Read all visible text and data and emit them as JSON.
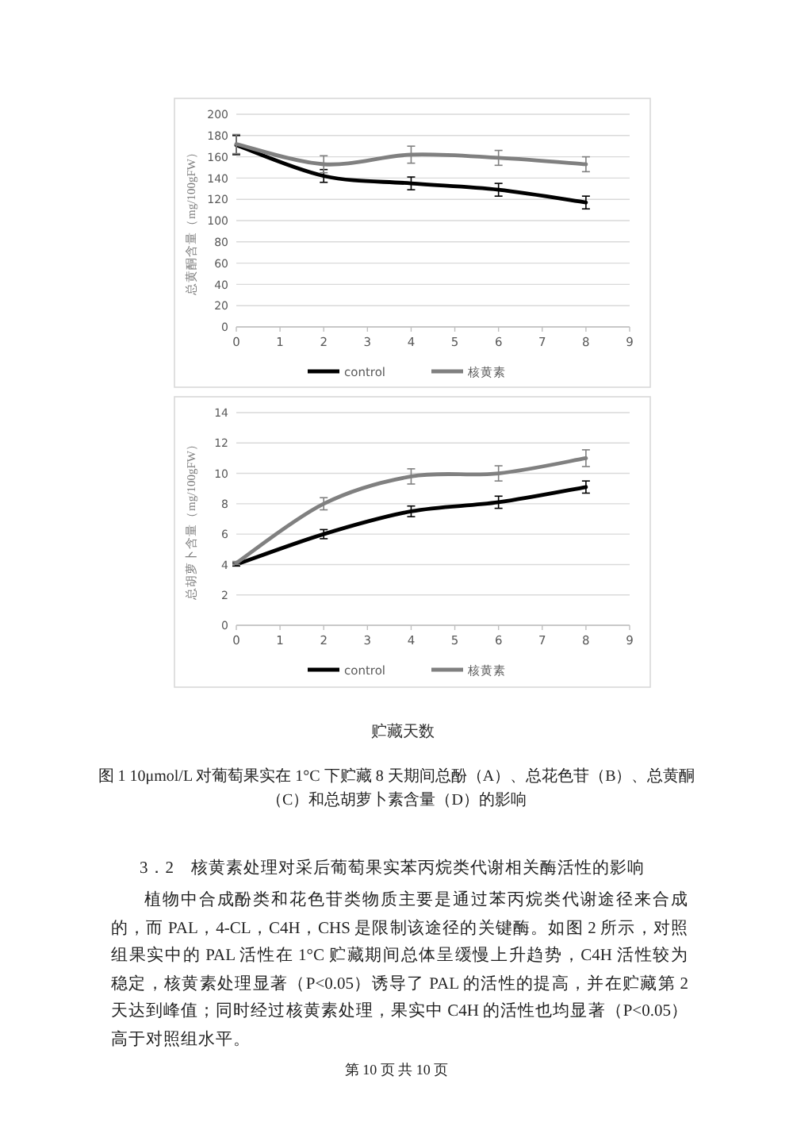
{
  "chart_data": [
    {
      "type": "line",
      "ylabel": "总黄酮含量（mg/100gFW）",
      "x": [
        0,
        2,
        4,
        6,
        8
      ],
      "xlim": [
        0,
        9
      ],
      "xticks": [
        0,
        1,
        2,
        3,
        4,
        5,
        6,
        7,
        8,
        9
      ],
      "ylim": [
        0,
        200
      ],
      "yticks": [
        0,
        20,
        40,
        60,
        80,
        100,
        120,
        140,
        160,
        180,
        200
      ],
      "grid": "y",
      "legend": "bottom",
      "line_style": "solid",
      "series": [
        {
          "name": "control",
          "color": "#000000",
          "values": [
            171,
            142,
            135,
            129,
            117
          ],
          "errors": [
            9,
            6,
            6,
            6,
            6
          ]
        },
        {
          "name": "核黄素",
          "color": "#808080",
          "values": [
            172,
            153,
            162,
            159,
            153
          ],
          "errors": [
            9,
            8,
            8,
            7,
            7
          ]
        }
      ]
    },
    {
      "type": "line",
      "ylabel": "总胡萝卜含量（mg/100gFW）",
      "xlabel": "贮藏天数",
      "x": [
        0,
        2,
        4,
        6,
        8
      ],
      "xlim": [
        0,
        9
      ],
      "xticks": [
        0,
        1,
        2,
        3,
        4,
        5,
        6,
        7,
        8,
        9
      ],
      "ylim": [
        0,
        14
      ],
      "yticks": [
        0,
        2,
        4,
        6,
        8,
        10,
        12,
        14
      ],
      "grid": "y",
      "legend": "bottom",
      "line_style": "solid",
      "series": [
        {
          "name": "control",
          "color": "#000000",
          "values": [
            4.0,
            6.0,
            7.5,
            8.1,
            9.1
          ],
          "errors": [
            0.1,
            0.3,
            0.35,
            0.4,
            0.4
          ]
        },
        {
          "name": "核黄素",
          "color": "#808080",
          "values": [
            4.1,
            8.0,
            9.8,
            10.0,
            11.0
          ],
          "errors": [
            0.1,
            0.4,
            0.5,
            0.5,
            0.55
          ]
        }
      ],
      "annotations": [
        "图 1 10μmol/L 对葡萄果实在 1°C 下贮藏 8 天期间总酚（A）、总花色苷（B）、总黄酮（C）和总胡萝卜素含量（D）的影响",
        "3．2　核黄素处理对采后葡萄果实苯丙烷类代谢相关酶活性的影响",
        "植物中合成酚类和花色苷类物质主要是通过苯丙烷类代谢途径来合成的，而 PAL，4-CL，C4H，CHS 是限制该途径的关键酶。如图 2 所示，对照组果实中的 PAL 活性在 1°C 贮藏期间总体呈缓慢上升趋势，C4H 活性较为稳定，核黄素处理显著（P<0.05）诱导了 PAL 的活性的提高，并在贮藏第 2 天达到峰值；同时经过核黄素处理，果实中 C4H 的活性也均显著（P<0.05）高于对照组水平。",
        "第 10 页 共 10 页"
      ]
    }
  ]
}
